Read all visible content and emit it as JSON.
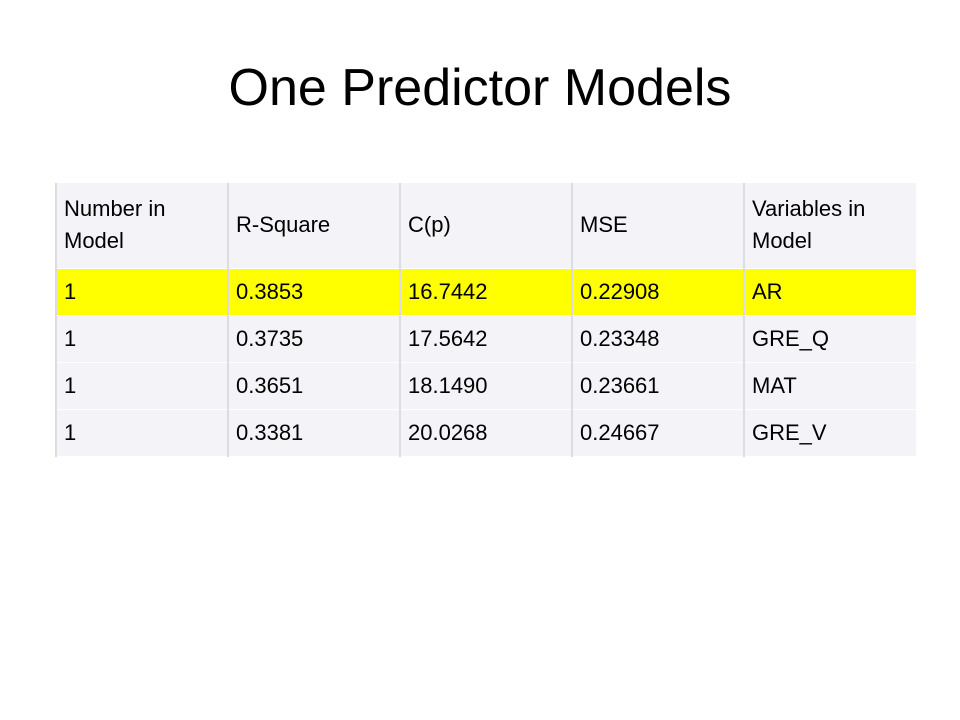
{
  "title": "One Predictor Models",
  "table": {
    "header": [
      "Number in Model",
      "R-Square",
      "C(p)",
      "MSE",
      "Variables in Model"
    ],
    "rows": [
      [
        "1",
        "0.3853",
        "16.7442",
        "0.22908",
        "AR"
      ],
      [
        "1",
        "0.3735",
        "17.5642",
        "0.23348",
        "GRE_Q"
      ],
      [
        "1",
        "0.3651",
        "18.1490",
        "0.23661",
        "MAT"
      ],
      [
        "1",
        "0.3381",
        "20.0268",
        "0.24667",
        "GRE_V"
      ]
    ],
    "highlight": {
      "row": 0,
      "color": "#ffff00"
    }
  }
}
